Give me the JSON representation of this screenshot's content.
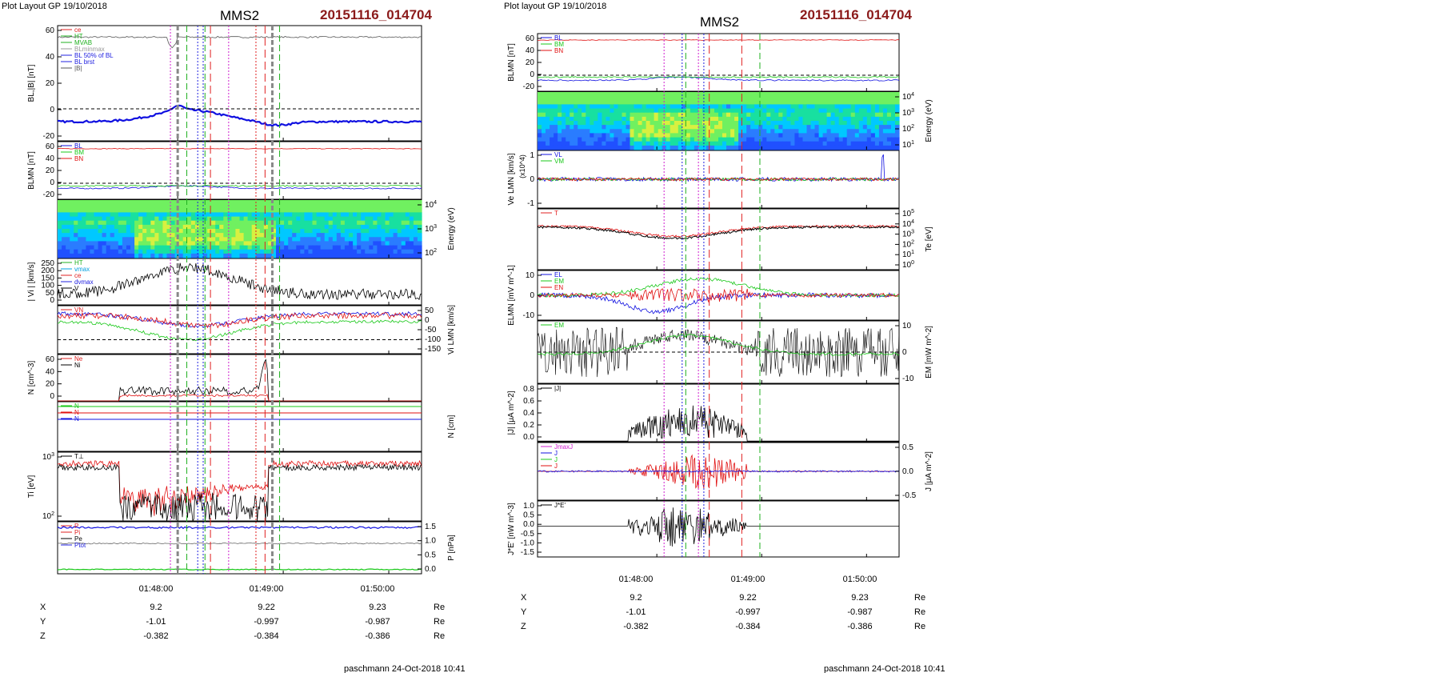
{
  "left": {
    "layout_label": "Plot Layout GP 19/10/2018",
    "title": "MMS2",
    "event_id": "20151116_014704",
    "footer": "paschmann 24-Oct-2018 10:41",
    "time_ticks": [
      "01:48:00",
      "01:49:00",
      "01:50:00"
    ],
    "ephem": {
      "rows": [
        {
          "label": "X",
          "values": [
            "9.2",
            "9.22",
            "9.23"
          ],
          "unit": "Re"
        },
        {
          "label": "Y",
          "values": [
            "-1.01",
            "-0.997",
            "-0.987"
          ],
          "unit": "Re"
        },
        {
          "label": "Z",
          "values": [
            "-0.382",
            "-0.384",
            "-0.386"
          ],
          "unit": "Re"
        }
      ]
    },
    "panels": [
      {
        "ylabel": "BL,|B| [nT]",
        "ylabel_right": "",
        "ticks_left": [
          "60",
          "40",
          "20",
          "0",
          "-20"
        ],
        "ticks_right": [],
        "legend": [
          "ce",
          "HT",
          "MVAB",
          "BLminmax",
          "BL 50% of BL",
          "BL brst",
          "|B|"
        ]
      },
      {
        "ylabel": "BLMN [nT]",
        "ylabel_right": "",
        "ticks_left": [
          "60",
          "40",
          "20",
          "0",
          "-20"
        ],
        "ticks_right": [],
        "legend": [
          "BL",
          "BM",
          "BN"
        ]
      },
      {
        "ylabel": "",
        "ylabel_right": "Energy (eV)",
        "ticks_left": [],
        "ticks_right": [
          "10^4",
          "10^3",
          "10^2"
        ],
        "legend": []
      },
      {
        "ylabel": "| Vi | [km/s]",
        "ylabel_right": "",
        "ticks_left": [
          "250",
          "200",
          "150",
          "100",
          "50",
          "0"
        ],
        "ticks_right": [],
        "legend": [
          "HT",
          "vmax",
          "ce",
          "dvmax",
          "V"
        ]
      },
      {
        "ylabel": "",
        "ylabel_right": "Vi LMN [km/s]",
        "ticks_left": [],
        "ticks_right": [
          "50",
          "0",
          "-50",
          "-100",
          "-150"
        ],
        "legend": [
          "VN"
        ]
      },
      {
        "ylabel": "N [cm^-3]",
        "ylabel_right": "",
        "ticks_left": [
          "60",
          "40",
          "20",
          "0"
        ],
        "ticks_right": [],
        "legend": [
          "Ne",
          "Ni"
        ]
      },
      {
        "ylabel": "",
        "ylabel_right": "N [cm]",
        "ticks_left": [],
        "ticks_right": [],
        "legend": [
          "N",
          "N",
          "N"
        ]
      },
      {
        "ylabel": "Ti [eV]",
        "ylabel_right": "",
        "ticks_left": [
          "10^3",
          "10^2"
        ],
        "ticks_right": [],
        "legend": [
          "T⊥"
        ]
      },
      {
        "ylabel": "",
        "ylabel_right": "P [nPa]",
        "ticks_left": [],
        "ticks_right": [
          "1.5",
          "1.0",
          "0.5",
          "0.0"
        ],
        "legend": [
          "P",
          "Pi",
          "Pe",
          "Ptot"
        ]
      }
    ]
  },
  "right": {
    "layout_label": "Plot layout GP 19/10/2018",
    "title": "MMS2",
    "event_id": "20151116_014704",
    "footer": "paschmann 24-Oct-2018 10:41",
    "time_ticks": [
      "01:48:00",
      "01:49:00",
      "01:50:00"
    ],
    "ephem": {
      "rows": [
        {
          "label": "X",
          "values": [
            "9.2",
            "9.22",
            "9.23"
          ],
          "unit": "Re"
        },
        {
          "label": "Y",
          "values": [
            "-1.01",
            "-0.997",
            "-0.987"
          ],
          "unit": "Re"
        },
        {
          "label": "Z",
          "values": [
            "-0.382",
            "-0.384",
            "-0.386"
          ],
          "unit": "Re"
        }
      ]
    },
    "panels": [
      {
        "ylabel": "BLMN [nT]",
        "ylabel_right": "",
        "ticks_left": [
          "60",
          "40",
          "20",
          "0",
          "-20"
        ],
        "ticks_right": [],
        "legend": [
          "BL",
          "BM",
          "BN"
        ]
      },
      {
        "ylabel": "",
        "ylabel_right": "Energy (eV)",
        "ticks_left": [],
        "ticks_right": [
          "10^4",
          "10^3",
          "10^2",
          "10^1"
        ],
        "legend": []
      },
      {
        "ylabel": "Ve LMN [km/s]",
        "ylabel_right": "",
        "ticks_left": [
          "1",
          "0",
          "-1"
        ],
        "ticks_right": [],
        "legend": [
          "VL",
          "VM"
        ],
        "scale_note": "(x10^4)"
      },
      {
        "ylabel": "",
        "ylabel_right": "Te [eV]",
        "ticks_left": [],
        "ticks_right": [
          "10^5",
          "10^4",
          "10^3",
          "10^2",
          "10^1",
          "10^0"
        ],
        "legend": [
          "T"
        ]
      },
      {
        "ylabel": "ELMN [mV m^-1]",
        "ylabel_right": "",
        "ticks_left": [
          "10",
          "0",
          "-10"
        ],
        "ticks_right": [],
        "legend": [
          "EL",
          "EM",
          "EN"
        ]
      },
      {
        "ylabel": "",
        "ylabel_right": "EM [mW m^-2]",
        "ticks_left": [],
        "ticks_right": [
          "10",
          "0",
          "-10"
        ],
        "legend": [
          "EM"
        ]
      },
      {
        "ylabel": "|J| [μA m^-2]",
        "ylabel_right": "",
        "ticks_left": [
          "0.8",
          "0.6",
          "0.4",
          "0.2",
          "0.0"
        ],
        "ticks_right": [],
        "legend": [
          "|J|"
        ]
      },
      {
        "ylabel": "",
        "ylabel_right": "J [μA m^-2]",
        "ticks_left": [],
        "ticks_right": [
          "0.5",
          "0.0",
          "-0.5"
        ],
        "legend": [
          "JmaxJ",
          "J",
          "J",
          "J"
        ]
      },
      {
        "ylabel": "J*E' [nW m^-3]",
        "ylabel_right": "",
        "ticks_left": [
          "1.0",
          "0.5",
          "0.0",
          "-0.5",
          "-1.0",
          "-1.5"
        ],
        "ticks_right": [],
        "legend": [
          "J*E'"
        ]
      }
    ]
  },
  "colors": {
    "title_red": "#8b1a1a",
    "bl": "#1010e0",
    "bm": "#18c818",
    "bn": "#e01010",
    "black": "#000000",
    "magenta": "#d020d0",
    "green_dash": "#20b020",
    "red_dash": "#e02020",
    "blue_dash": "#2020e0"
  },
  "chart_data": [
    {
      "type": "line",
      "title": "MMS2 20151116_014704",
      "xlabel": "",
      "x": [
        "01:48:00",
        "01:49:00",
        "01:50:00"
      ],
      "panels": 9,
      "grid": false,
      "legend_position": "top-left"
    },
    {
      "type": "line",
      "title": "MMS2 20151116_014704",
      "xlabel": "",
      "x": [
        "01:48:00",
        "01:49:00",
        "01:50:00"
      ],
      "panels": 9,
      "grid": false,
      "legend_position": "top-left"
    }
  ]
}
